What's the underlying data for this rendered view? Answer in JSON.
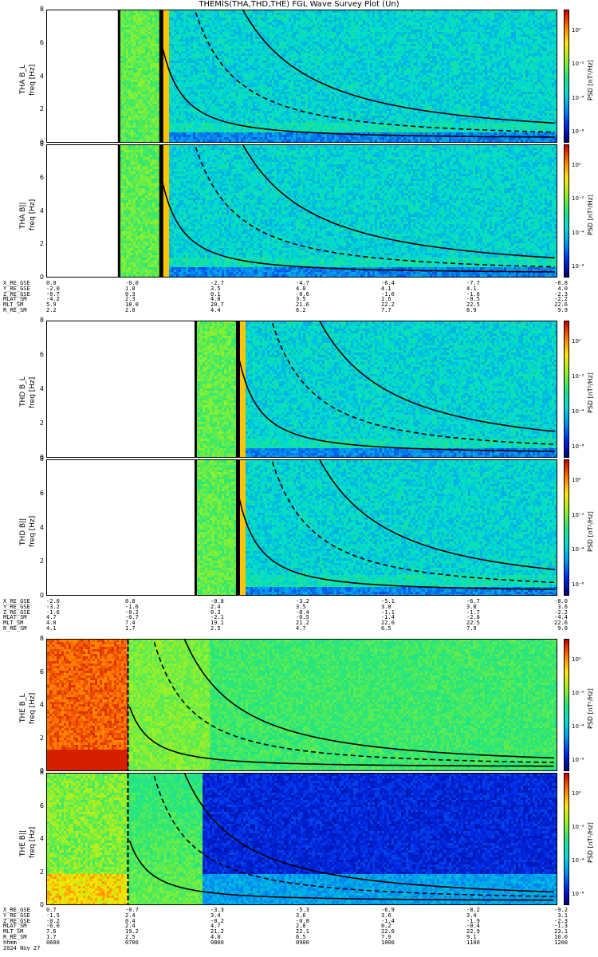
{
  "title": "THEMIS(THA,THD,THE) FGL Wave Survey Plot (Un)",
  "colorbar": {
    "label": "PSD [nT²/Hz]",
    "ticks": [
      "10⁰",
      "10⁻²",
      "10⁻⁴",
      "10⁻⁶"
    ]
  },
  "yticks": [
    "0",
    "2",
    "4",
    "6",
    "8"
  ],
  "chart_data": [
    {
      "type": "heatmap",
      "probe": "THA",
      "component": "B_L",
      "ylabel": "THA B_L",
      "ylabel2": "freq [Hz]",
      "ylim": [
        0,
        8
      ],
      "data_start_hour": 6.85,
      "gap_before_data": true
    },
    {
      "type": "heatmap",
      "probe": "THA",
      "component": "B||",
      "ylabel": "THA B||",
      "ylabel2": "freq [Hz]",
      "ylim": [
        0,
        8
      ],
      "data_start_hour": 6.85,
      "gap_before_data": true
    },
    {
      "type": "heatmap",
      "probe": "THD",
      "component": "B_L",
      "ylabel": "THD B_L",
      "ylabel2": "freq [Hz]",
      "ylim": [
        0,
        8
      ],
      "data_start_hour": 7.75,
      "gap_before_data": true
    },
    {
      "type": "heatmap",
      "probe": "THD",
      "component": "B||",
      "ylabel": "THD B||",
      "ylabel2": "freq [Hz]",
      "ylim": [
        0,
        8
      ],
      "data_start_hour": 7.75,
      "gap_before_data": true
    },
    {
      "type": "heatmap",
      "probe": "THE",
      "component": "B_L",
      "ylabel": "THE B_L",
      "ylabel2": "freq [Hz]",
      "ylim": [
        0,
        8
      ],
      "data_start_hour": 6.0,
      "gap_before_data": false
    },
    {
      "type": "heatmap",
      "probe": "THE",
      "component": "B||",
      "ylabel": "THE B||",
      "ylabel2": "freq [Hz]",
      "ylim": [
        0,
        8
      ],
      "data_start_hour": 6.0,
      "gap_before_data": false
    }
  ],
  "ephemeris": [
    {
      "labels": [
        "X_RE_GSE",
        "Y_RE_GSE",
        "Z_RE_GSE",
        "MLAT_SM",
        "MLT_SM",
        "R_RE_SM"
      ],
      "columns": [
        [
          "0.0",
          "-2.0",
          "-0.7",
          "-4.2",
          "5.9",
          "2.2"
        ],
        [
          "-0.0",
          "1.8",
          "0.3",
          "2.3",
          "18.0",
          "2.0"
        ],
        [
          "-2.7",
          "3.5",
          "0.1",
          "4.8",
          "20.7",
          "4.4"
        ],
        [
          "-4.7",
          "4.0",
          "-0.6",
          "3.5",
          "21.6",
          "6.2"
        ],
        [
          "-6.4",
          "4.1",
          "-1.0",
          "1.6",
          "22.2",
          "7.7"
        ],
        [
          "-7.7",
          "4.1",
          "-1.6",
          "-0.5",
          "22.5",
          "8.9"
        ],
        [
          "-8.8",
          "4.0",
          "-2.3",
          "-2.2",
          "22.6",
          "9.9"
        ]
      ]
    },
    {
      "labels": [
        "X_RE_GSE",
        "Y_RE_GSE",
        "Z_RE_GSE",
        "MLAT_SM",
        "MLT_SM",
        "R_RE_SM"
      ],
      "columns": [
        [
          "-2.0",
          "-3.2",
          "-1.6",
          "4.7",
          "4.0",
          "4.1"
        ],
        [
          "0.8",
          "-1.6",
          "-0.2",
          "-0.7",
          "7.4",
          "1.7"
        ],
        [
          "-0.8",
          "2.4",
          "0.3",
          "-2.1",
          "19.1",
          "2.5"
        ],
        [
          "-3.2",
          "3.5",
          "-0.4",
          "-0.5",
          "21.2",
          "4.7"
        ],
        [
          "-5.1",
          "3.8",
          "-1.1",
          "-1.4",
          "22.0",
          "6.5"
        ],
        [
          "-6.7",
          "3.8",
          "-1.7",
          "-2.8",
          "22.5",
          "7.9"
        ],
        [
          "-8.0",
          "3.6",
          "-2.2",
          "-4.4",
          "22.6",
          "9.0"
        ]
      ]
    },
    {
      "labels": [
        "X_RE_GSE",
        "Y_RE_GSE",
        "Z_RE_GSE",
        "MLAT_SM",
        "MLT_SM",
        "R_RE_SM",
        "hhmm",
        "2024 Nov 27"
      ],
      "columns": [
        [
          "0.7",
          "-1.5",
          "-0.2",
          "-6.0",
          "7.6",
          "1.7",
          "0600"
        ],
        [
          "-0.7",
          "2.4",
          "0.4",
          "2.4",
          "19.2",
          "2.5",
          "0700"
        ],
        [
          "-3.3",
          "3.4",
          "-0.2",
          "4.7",
          "21.2",
          "4.8",
          "0800"
        ],
        [
          "-5.3",
          "3.6",
          "-0.8",
          "2.8",
          "22.1",
          "6.5",
          "0900"
        ],
        [
          "-6.9",
          "3.6",
          "-1.4",
          "0.2",
          "22.6",
          "7.9",
          "1000"
        ],
        [
          "-8.2",
          "3.4",
          "-1.9",
          "-0.4",
          "22.9",
          "9.1",
          "1100"
        ],
        [
          "-9.2",
          "3.1",
          "-2.3",
          "-1.3",
          "23.1",
          "10.0",
          "1200"
        ]
      ]
    }
  ]
}
